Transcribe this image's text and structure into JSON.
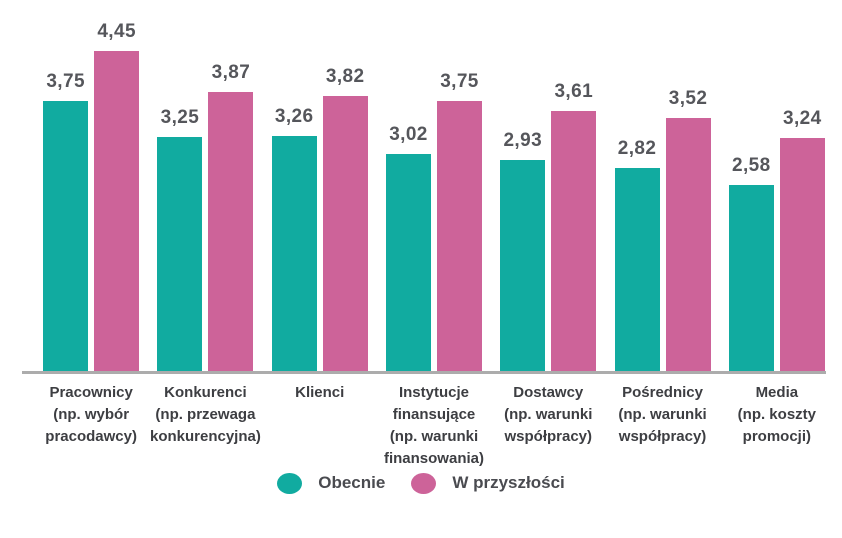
{
  "chart_data": {
    "type": "bar",
    "title": "",
    "xlabel": "",
    "ylabel": "",
    "ylim": [
      0,
      5
    ],
    "grid": false,
    "legend_position": "bottom",
    "background": "#FFFFFF",
    "axis_line_color": "#ACACAC",
    "value_label_color": "#55565B",
    "category_label_color": "#3D3E42",
    "legend_text_color": "#4A4B50",
    "categories": [
      "Pracownicy\n(np. wybór\npracodawcy)",
      "Konkurenci\n(np. przewaga\nkonkurencyjna)",
      "Klienci",
      "Instytucje\nfinansujące\n(np. warunki\nfinansowania)",
      "Dostawcy\n(np. warunki\nwspółpracy)",
      "Pośrednicy\n(np. warunki\nwspółpracy)",
      "Media\n(np. koszty\npromocji)"
    ],
    "series": [
      {
        "name": "Obecnie",
        "color": "#11ABA0",
        "values": [
          3.75,
          3.25,
          3.26,
          3.02,
          2.93,
          2.82,
          2.58
        ],
        "display": [
          "3,75",
          "3,25",
          "3,26",
          "3,02",
          "2,93",
          "2,82",
          "2,58"
        ]
      },
      {
        "name": "W przyszłości",
        "color": "#CD6399",
        "values": [
          4.45,
          3.87,
          3.82,
          3.75,
          3.61,
          3.52,
          3.24
        ],
        "display": [
          "4,45",
          "3,87",
          "3,82",
          "3,75",
          "3,61",
          "3,52",
          "3,24"
        ]
      }
    ]
  }
}
